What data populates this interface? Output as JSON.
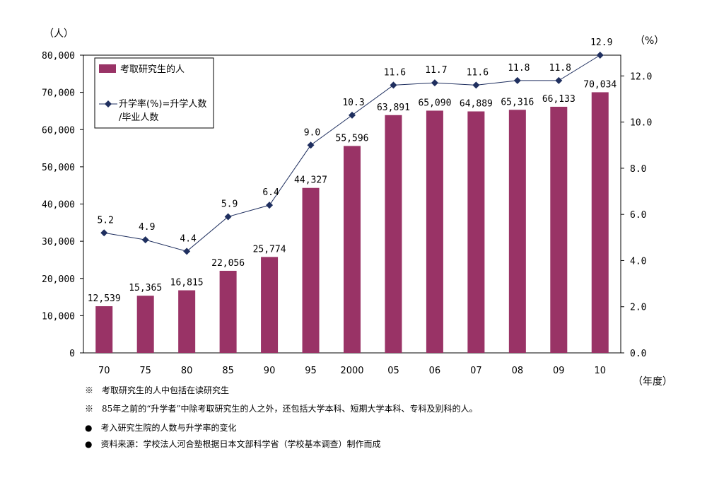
{
  "chart_data": {
    "type": "bar+line",
    "categories": [
      "70",
      "75",
      "80",
      "85",
      "90",
      "95",
      "2000",
      "05",
      "06",
      "07",
      "08",
      "09",
      "10"
    ],
    "series": [
      {
        "name": "考取研究生的人",
        "axis": "left",
        "type": "bar",
        "color": "#993366",
        "values": [
          12539,
          15365,
          16815,
          22056,
          25774,
          44327,
          55596,
          63891,
          65090,
          64889,
          65316,
          66133,
          70034
        ],
        "labels": [
          "12,539",
          "15,365",
          "16,815",
          "22,056",
          "25,774",
          "44,327",
          "55,596",
          "63,891",
          "65,090",
          "64,889",
          "65,316",
          "66,133",
          "70,034"
        ]
      },
      {
        "name": "升学率(%)=升学人数/毕业人数",
        "axis": "right",
        "type": "line",
        "color": "#1f2f5f",
        "values": [
          5.2,
          4.9,
          4.4,
          5.9,
          6.4,
          9.0,
          10.3,
          11.6,
          11.7,
          11.6,
          11.8,
          11.8,
          12.9
        ],
        "labels": [
          "5.2",
          "4.9",
          "4.4",
          "5.9",
          "6.4",
          "9.0",
          "10.3",
          "11.6",
          "11.7",
          "11.6",
          "11.8",
          "11.8",
          "12.9"
        ]
      }
    ],
    "left_axis": {
      "unit": "（人）",
      "min": 0,
      "max": 80000,
      "ticks": [
        "0",
        "10,000",
        "20,000",
        "30,000",
        "40,000",
        "50,000",
        "60,000",
        "70,000",
        "80,000"
      ]
    },
    "right_axis": {
      "unit": "（%）",
      "min": 0,
      "max": 12.9,
      "ticks": [
        "0.0",
        "2.0",
        "4.0",
        "6.0",
        "8.0",
        "10.0",
        "12.0"
      ],
      "tick_values": [
        0,
        2,
        4,
        6,
        8,
        10,
        12
      ]
    },
    "x_unit": "（年度）",
    "legend": {
      "placement": "top-left",
      "bar_label": "考取研究生的人",
      "line_label_1": "升学率(%)=升学人数",
      "line_label_2": "/毕业人数"
    }
  },
  "notes": [
    "※　考取研究生的人中包括在读研究生",
    "※　85年之前的“升学者”中除考取研究生的人之外，还包括大学本科、短期大学本科、专科及别科的人。",
    "●　考入研究生院的人数与升学率的变化",
    "●　资料来源：学校法人河合塾根据日本文部科学省（学校基本调查）制作而成"
  ]
}
